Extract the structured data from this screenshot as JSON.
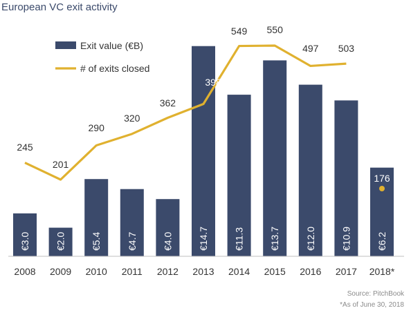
{
  "title": "European VC exit activity",
  "source": "Source: PitchBook",
  "footnote": "*As of June 30, 2018",
  "colors": {
    "bar": "#3b4a6b",
    "line": "#e0b12f",
    "text": "#333333"
  },
  "chart_data": {
    "type": "bar",
    "title": "European VC exit activity",
    "categories": [
      "2008",
      "2009",
      "2010",
      "2011",
      "2012",
      "2013",
      "2014",
      "2015",
      "2016",
      "2017",
      "2018*"
    ],
    "series": [
      {
        "name": "Exit value  (€B)",
        "type": "bar",
        "values": [
          3.0,
          2.0,
          5.4,
          4.7,
          4.0,
          14.7,
          11.3,
          13.7,
          12.0,
          10.9,
          6.2
        ],
        "labels": [
          "€3.0",
          "€2.0",
          "€5.4",
          "€4.7",
          "€4.0",
          "€14.7",
          "€11.3",
          "€13.7",
          "€12.0",
          "€10.9",
          "€6.2"
        ]
      },
      {
        "name": "# of exits closed",
        "type": "line",
        "values": [
          245,
          201,
          290,
          320,
          362,
          398,
          549,
          550,
          497,
          503,
          176
        ]
      }
    ],
    "legend_position": "top-left",
    "grid": false
  }
}
